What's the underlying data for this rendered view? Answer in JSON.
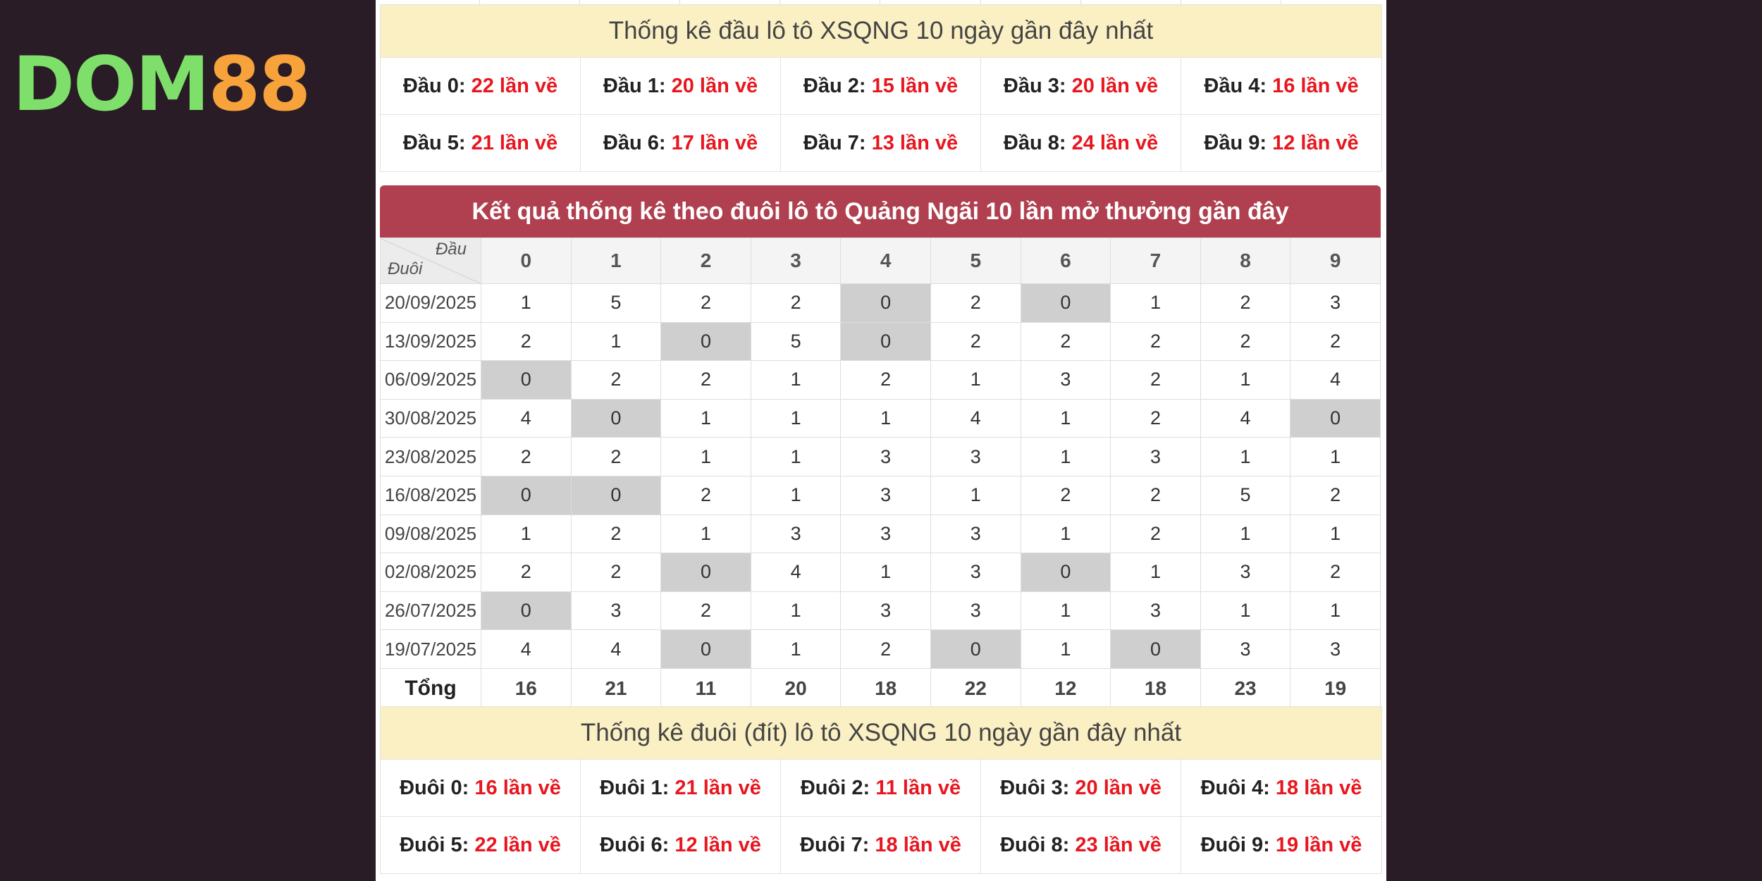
{
  "logo": {
    "part1": "DOM",
    "part2": "88"
  },
  "head_stats": {
    "title": "Thống kê đầu lô tô XSQNG 10 ngày gần đây nhất",
    "items": [
      {
        "label": "Đầu 0:",
        "value": "22 lần về"
      },
      {
        "label": "Đầu 1:",
        "value": "20 lần về"
      },
      {
        "label": "Đầu 2:",
        "value": "15 lần về"
      },
      {
        "label": "Đầu 3:",
        "value": "20 lần về"
      },
      {
        "label": "Đầu 4:",
        "value": "16 lần về"
      },
      {
        "label": "Đầu 5:",
        "value": "21 lần về"
      },
      {
        "label": "Đầu 6:",
        "value": "17 lần về"
      },
      {
        "label": "Đầu 7:",
        "value": "13 lần về"
      },
      {
        "label": "Đầu 8:",
        "value": "24 lần về"
      },
      {
        "label": "Đầu 9:",
        "value": "12 lần về"
      }
    ]
  },
  "table": {
    "title": "Kết quả thống kê theo đuôi lô tô Quảng Ngãi 10 lần mở thưởng gần đây",
    "corner_top": "Đầu",
    "corner_bottom": "Đuôi",
    "columns": [
      "0",
      "1",
      "2",
      "3",
      "4",
      "5",
      "6",
      "7",
      "8",
      "9"
    ],
    "rows": [
      {
        "date": "20/09/2025",
        "values": [
          "1",
          "5",
          "2",
          "2",
          "0",
          "2",
          "0",
          "1",
          "2",
          "3"
        ]
      },
      {
        "date": "13/09/2025",
        "values": [
          "2",
          "1",
          "0",
          "5",
          "0",
          "2",
          "2",
          "2",
          "2",
          "2"
        ]
      },
      {
        "date": "06/09/2025",
        "values": [
          "0",
          "2",
          "2",
          "1",
          "2",
          "1",
          "3",
          "2",
          "1",
          "4"
        ]
      },
      {
        "date": "30/08/2025",
        "values": [
          "4",
          "0",
          "1",
          "1",
          "1",
          "4",
          "1",
          "2",
          "4",
          "0"
        ]
      },
      {
        "date": "23/08/2025",
        "values": [
          "2",
          "2",
          "1",
          "1",
          "3",
          "3",
          "1",
          "3",
          "1",
          "1"
        ]
      },
      {
        "date": "16/08/2025",
        "values": [
          "0",
          "0",
          "2",
          "1",
          "3",
          "1",
          "2",
          "2",
          "5",
          "2"
        ]
      },
      {
        "date": "09/08/2025",
        "values": [
          "1",
          "2",
          "1",
          "3",
          "3",
          "3",
          "1",
          "2",
          "1",
          "1"
        ]
      },
      {
        "date": "02/08/2025",
        "values": [
          "2",
          "2",
          "0",
          "4",
          "1",
          "3",
          "0",
          "1",
          "3",
          "2"
        ]
      },
      {
        "date": "26/07/2025",
        "values": [
          "0",
          "3",
          "2",
          "1",
          "3",
          "3",
          "1",
          "3",
          "1",
          "1"
        ]
      },
      {
        "date": "19/07/2025",
        "values": [
          "4",
          "4",
          "0",
          "1",
          "2",
          "0",
          "1",
          "0",
          "3",
          "3"
        ]
      }
    ],
    "total_label": "Tổng",
    "totals": [
      "16",
      "21",
      "11",
      "20",
      "18",
      "22",
      "12",
      "18",
      "23",
      "19"
    ]
  },
  "tail_stats": {
    "title": "Thống kê đuôi (đít) lô tô XSQNG 10 ngày gần đây nhất",
    "items": [
      {
        "label": "Đuôi 0:",
        "value": "16 lần về"
      },
      {
        "label": "Đuôi 1:",
        "value": "21 lần về"
      },
      {
        "label": "Đuôi 2:",
        "value": "11 lần về"
      },
      {
        "label": "Đuôi 3:",
        "value": "20 lần về"
      },
      {
        "label": "Đuôi 4:",
        "value": "18 lần về"
      },
      {
        "label": "Đuôi 5:",
        "value": "22 lần về"
      },
      {
        "label": "Đuôi 6:",
        "value": "12 lần về"
      },
      {
        "label": "Đuôi 7:",
        "value": "18 lần về"
      },
      {
        "label": "Đuôi 8:",
        "value": "23 lần về"
      },
      {
        "label": "Đuôi 9:",
        "value": "19 lần về"
      }
    ]
  },
  "colors": {
    "accent_red": "#e8161f",
    "title_bar": "#b0404f",
    "stat_header_bg": "#fbf0c4",
    "zero_cell_bg": "#cfcfcf"
  }
}
